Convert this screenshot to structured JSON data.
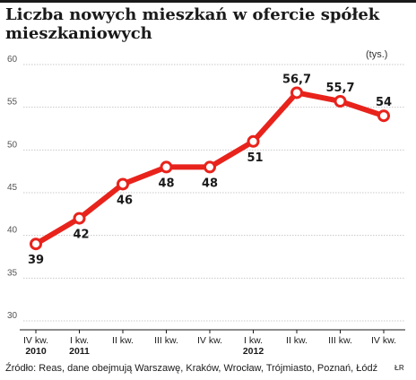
{
  "chart_data": {
    "type": "line",
    "title": "Liczba nowych mieszkań w ofercie spółek mieszkaniowych",
    "unit": "(tys.)",
    "categories": [
      "IV kw.",
      "I kw.",
      "II kw.",
      "III kw.",
      "IV kw.",
      "I kw.",
      "II kw.",
      "III kw.",
      "IV kw."
    ],
    "year_labels": [
      "2010",
      "2011",
      "",
      "",
      "",
      "2012",
      "",
      "",
      ""
    ],
    "series": [
      {
        "values": [
          39,
          42,
          46,
          48,
          48,
          51,
          56.7,
          55.7,
          54
        ]
      }
    ],
    "data_labels": [
      "39",
      "42",
      "46",
      "48",
      "48",
      "51",
      "56,7",
      "55,7",
      "54"
    ],
    "y_ticks": [
      "30",
      "35",
      "40",
      "45",
      "50",
      "55",
      "60"
    ],
    "ylim": [
      30,
      60
    ],
    "grid": true,
    "line_color": "#e8231c"
  },
  "source": "Źródło: Reas, dane obejmują Warszawę, Kraków, Wrocław, Trójmiasto, Poznań, Łódź",
  "credit": "ŁR"
}
